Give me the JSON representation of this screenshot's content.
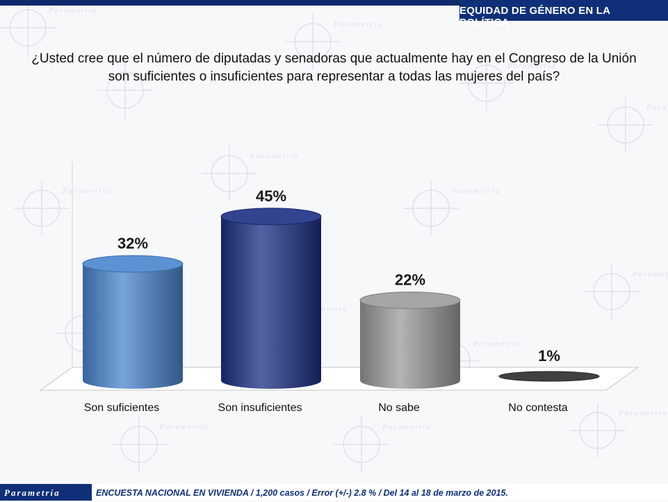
{
  "header": {
    "title": "EQUIDAD DE GÉNERO EN LA POLÍTICA"
  },
  "question": {
    "line1": "¿Usted cree que el número de diputadas y senadoras que actualmente hay en el Congreso de la Unión",
    "line2": "son suficientes o insuficientes para representar a todas las mujeres del país?"
  },
  "chart_data": {
    "type": "bar",
    "categories": [
      "Son suficientes",
      "Son insuficientes",
      "No sabe",
      "No contesta"
    ],
    "values": [
      32,
      45,
      22,
      1
    ],
    "data_labels": [
      "32%",
      "45%",
      "22%",
      "1%"
    ],
    "ylim": [
      0,
      60
    ],
    "grid": false,
    "colors": [
      "#4a86cf",
      "#1b2f84",
      "#9b9b9b",
      "#2b2b2b"
    ]
  },
  "footer": {
    "brand": "Parametría",
    "note": "ENCUESTA NACIONAL EN VIVIENDA / 1,200 casos / Error (+/-) 2.8 % / Del 14 al 18 de marzo de 2015."
  },
  "watermark": {
    "text": "Parametría"
  }
}
